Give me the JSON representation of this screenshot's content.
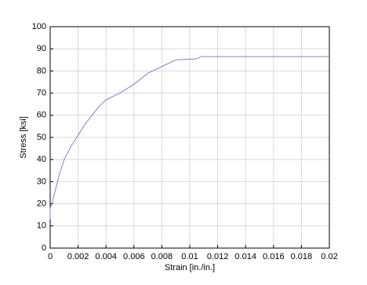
{
  "chart_data": {
    "type": "line",
    "x_label": "Strain [in./in.]",
    "y_label": "Stress [ksi]",
    "x": [
      0,
      0,
      0.0002,
      0.0004,
      0.0006,
      0.0008,
      0.001,
      0.0015,
      0.002,
      0.0025,
      0.003,
      0.0035,
      0.004,
      0.005,
      0.006,
      0.007,
      0.008,
      0.009,
      0.0105,
      0.0108,
      0.02
    ],
    "values": [
      13,
      18,
      22,
      27,
      32,
      36,
      40,
      46,
      51,
      56,
      60,
      64,
      67,
      70,
      74,
      79,
      82,
      85,
      85.5,
      86.5,
      86.5
    ],
    "color": "#8080e0",
    "xlim": [
      0,
      0.02
    ],
    "xticks": [
      0,
      0.002,
      0.004,
      0.006,
      0.008,
      0.01,
      0.012,
      0.014,
      0.016,
      0.018,
      0.02
    ],
    "ylim": [
      0,
      100
    ],
    "yticks": [
      0,
      10,
      20,
      30,
      40,
      50,
      60,
      70,
      80,
      90,
      100
    ],
    "grid": true
  }
}
